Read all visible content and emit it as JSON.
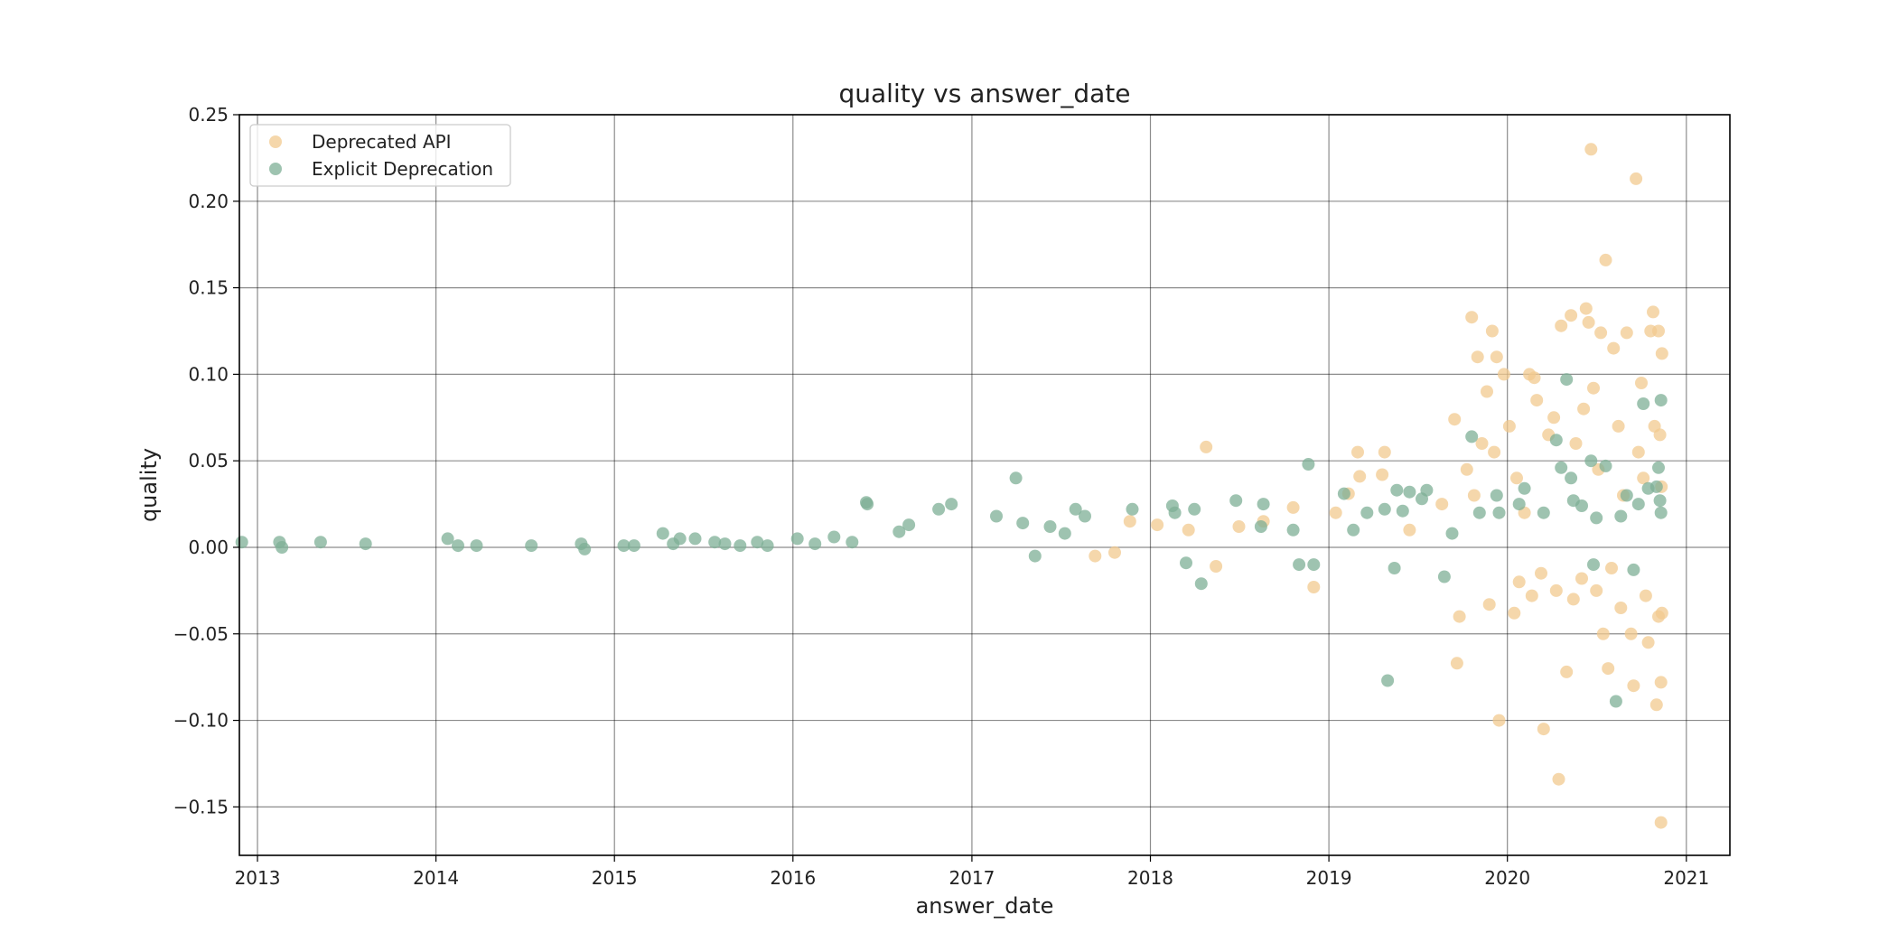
{
  "chart_data": {
    "type": "scatter",
    "title": "quality vs answer_date",
    "xlabel": "answer_date",
    "ylabel": "quality",
    "x_axis_type": "date",
    "xlim": [
      "2012-11-25",
      "2021-03-31"
    ],
    "ylim": [
      -0.178,
      0.25
    ],
    "x_ticks": [
      "2013",
      "2014",
      "2015",
      "2016",
      "2017",
      "2018",
      "2019",
      "2020",
      "2021"
    ],
    "y_ticks": [
      "0.25",
      "0.20",
      "0.15",
      "0.10",
      "0.05",
      "0.00",
      "−0.05",
      "−0.10",
      "−0.15"
    ],
    "grid": true,
    "legend_position": "top-left",
    "series": [
      {
        "name": "Deprecated API",
        "color": "#f2c98f",
        "points": [
          [
            "2017-09-10",
            -0.005
          ],
          [
            "2017-10-20",
            -0.003
          ],
          [
            "2017-11-20",
            0.015
          ],
          [
            "2018-01-15",
            0.013
          ],
          [
            "2018-03-20",
            0.01
          ],
          [
            "2018-04-25",
            0.058
          ],
          [
            "2018-05-15",
            -0.011
          ],
          [
            "2018-07-01",
            0.012
          ],
          [
            "2018-08-20",
            0.015
          ],
          [
            "2018-10-20",
            0.023
          ],
          [
            "2018-12-01",
            -0.023
          ],
          [
            "2019-01-15",
            0.02
          ],
          [
            "2019-02-10",
            0.031
          ],
          [
            "2019-03-01",
            0.055
          ],
          [
            "2019-03-05",
            0.041
          ],
          [
            "2019-04-20",
            0.042
          ],
          [
            "2019-04-25",
            0.055
          ],
          [
            "2019-06-15",
            0.01
          ],
          [
            "2019-08-20",
            0.025
          ],
          [
            "2019-09-15",
            0.074
          ],
          [
            "2019-09-20",
            -0.067
          ],
          [
            "2019-09-25",
            -0.04
          ],
          [
            "2019-10-20",
            0.133
          ],
          [
            "2019-11-01",
            0.11
          ],
          [
            "2019-11-20",
            0.09
          ],
          [
            "2019-11-25",
            -0.033
          ],
          [
            "2019-12-01",
            0.125
          ],
          [
            "2019-12-10",
            0.11
          ],
          [
            "2019-12-15",
            -0.1
          ],
          [
            "2019-12-25",
            0.1
          ],
          [
            "2020-01-15",
            -0.038
          ],
          [
            "2020-02-15",
            0.1
          ],
          [
            "2020-02-25",
            0.098
          ],
          [
            "2020-03-15",
            -0.105
          ],
          [
            "2020-04-15",
            -0.134
          ],
          [
            "2020-04-20",
            0.128
          ],
          [
            "2020-05-01",
            -0.072
          ],
          [
            "2020-05-10",
            0.134
          ],
          [
            "2020-06-10",
            0.138
          ],
          [
            "2020-06-15",
            0.13
          ],
          [
            "2020-06-20",
            0.23
          ],
          [
            "2020-06-25",
            0.092
          ],
          [
            "2020-07-10",
            0.124
          ],
          [
            "2020-07-15",
            -0.05
          ],
          [
            "2020-07-20",
            0.166
          ],
          [
            "2020-07-25",
            -0.07
          ],
          [
            "2020-08-05",
            0.115
          ],
          [
            "2020-09-01",
            0.124
          ],
          [
            "2020-09-10",
            -0.05
          ],
          [
            "2020-09-15",
            -0.08
          ],
          [
            "2020-09-20",
            0.213
          ],
          [
            "2020-10-01",
            0.095
          ],
          [
            "2020-10-15",
            -0.055
          ],
          [
            "2020-10-20",
            0.125
          ],
          [
            "2020-10-25",
            0.136
          ],
          [
            "2020-11-01",
            -0.091
          ],
          [
            "2020-11-05",
            -0.04
          ],
          [
            "2020-11-05",
            0.125
          ],
          [
            "2020-11-10",
            -0.078
          ],
          [
            "2020-11-10",
            -0.159
          ],
          [
            "2020-11-12",
            -0.038
          ],
          [
            "2020-11-12",
            0.112
          ],
          [
            "2019-10-10",
            0.045
          ],
          [
            "2019-10-25",
            0.03
          ],
          [
            "2019-11-10",
            0.06
          ],
          [
            "2019-12-05",
            0.055
          ],
          [
            "2020-01-05",
            0.07
          ],
          [
            "2020-01-20",
            0.04
          ],
          [
            "2020-02-05",
            0.02
          ],
          [
            "2020-03-01",
            0.085
          ],
          [
            "2020-03-25",
            0.065
          ],
          [
            "2020-04-05",
            0.075
          ],
          [
            "2020-05-20",
            0.06
          ],
          [
            "2020-06-05",
            0.08
          ],
          [
            "2020-07-05",
            0.045
          ],
          [
            "2020-08-15",
            0.07
          ],
          [
            "2020-08-25",
            0.03
          ],
          [
            "2020-09-25",
            0.055
          ],
          [
            "2020-10-05",
            0.04
          ],
          [
            "2020-10-28",
            0.07
          ],
          [
            "2020-11-08",
            0.065
          ],
          [
            "2020-11-11",
            0.035
          ],
          [
            "2020-01-25",
            -0.02
          ],
          [
            "2020-02-20",
            -0.028
          ],
          [
            "2020-03-10",
            -0.015
          ],
          [
            "2020-04-10",
            -0.025
          ],
          [
            "2020-05-15",
            -0.03
          ],
          [
            "2020-06-01",
            -0.018
          ],
          [
            "2020-07-01",
            -0.025
          ],
          [
            "2020-08-01",
            -0.012
          ],
          [
            "2020-08-20",
            -0.035
          ],
          [
            "2020-10-10",
            -0.028
          ]
        ]
      },
      {
        "name": "Explicit Deprecation",
        "color": "#7daf95",
        "points": [
          [
            "2012-11-30",
            0.003
          ],
          [
            "2013-02-15",
            0.003
          ],
          [
            "2013-02-20",
            0.0
          ],
          [
            "2013-05-10",
            0.003
          ],
          [
            "2013-08-10",
            0.002
          ],
          [
            "2014-01-25",
            0.005
          ],
          [
            "2014-02-15",
            0.001
          ],
          [
            "2014-03-25",
            0.001
          ],
          [
            "2014-07-15",
            0.001
          ],
          [
            "2014-10-25",
            0.002
          ],
          [
            "2014-11-01",
            -0.001
          ],
          [
            "2015-01-20",
            0.001
          ],
          [
            "2015-02-10",
            0.001
          ],
          [
            "2015-04-10",
            0.008
          ],
          [
            "2015-05-01",
            0.002
          ],
          [
            "2015-05-15",
            0.005
          ],
          [
            "2015-06-15",
            0.005
          ],
          [
            "2015-07-25",
            0.003
          ],
          [
            "2015-08-15",
            0.002
          ],
          [
            "2015-09-15",
            0.001
          ],
          [
            "2015-10-20",
            0.003
          ],
          [
            "2015-11-10",
            0.001
          ],
          [
            "2016-01-10",
            0.005
          ],
          [
            "2016-02-15",
            0.002
          ],
          [
            "2016-03-25",
            0.006
          ],
          [
            "2016-05-01",
            0.003
          ],
          [
            "2016-05-30",
            0.026
          ],
          [
            "2016-06-01",
            0.025
          ],
          [
            "2016-08-05",
            0.009
          ],
          [
            "2016-08-25",
            0.013
          ],
          [
            "2016-10-25",
            0.022
          ],
          [
            "2016-11-20",
            0.025
          ],
          [
            "2017-02-20",
            0.018
          ],
          [
            "2017-04-01",
            0.04
          ],
          [
            "2017-04-15",
            0.014
          ],
          [
            "2017-05-10",
            -0.005
          ],
          [
            "2017-06-10",
            0.012
          ],
          [
            "2017-07-10",
            0.008
          ],
          [
            "2017-08-01",
            0.022
          ],
          [
            "2017-08-20",
            0.018
          ],
          [
            "2017-11-25",
            0.022
          ],
          [
            "2018-02-15",
            0.024
          ],
          [
            "2018-02-20",
            0.02
          ],
          [
            "2018-03-15",
            -0.009
          ],
          [
            "2018-04-01",
            0.022
          ],
          [
            "2018-04-15",
            -0.021
          ],
          [
            "2018-06-25",
            0.027
          ],
          [
            "2018-08-15",
            0.012
          ],
          [
            "2018-08-20",
            0.025
          ],
          [
            "2018-10-20",
            0.01
          ],
          [
            "2018-11-01",
            -0.01
          ],
          [
            "2018-11-20",
            0.048
          ],
          [
            "2018-12-01",
            -0.01
          ],
          [
            "2019-02-01",
            0.031
          ],
          [
            "2019-02-20",
            0.01
          ],
          [
            "2019-03-20",
            0.02
          ],
          [
            "2019-04-25",
            0.022
          ],
          [
            "2019-05-01",
            -0.077
          ],
          [
            "2019-05-15",
            -0.012
          ],
          [
            "2019-05-20",
            0.033
          ],
          [
            "2019-06-01",
            0.021
          ],
          [
            "2019-06-15",
            0.032
          ],
          [
            "2019-07-10",
            0.028
          ],
          [
            "2019-07-20",
            0.033
          ],
          [
            "2019-08-25",
            -0.017
          ],
          [
            "2019-09-10",
            0.008
          ],
          [
            "2019-10-20",
            0.064
          ],
          [
            "2019-11-05",
            0.02
          ],
          [
            "2019-12-10",
            0.03
          ],
          [
            "2019-12-15",
            0.02
          ],
          [
            "2020-01-25",
            0.025
          ],
          [
            "2020-02-05",
            0.034
          ],
          [
            "2020-03-15",
            0.02
          ],
          [
            "2020-04-10",
            0.062
          ],
          [
            "2020-04-20",
            0.046
          ],
          [
            "2020-05-01",
            0.097
          ],
          [
            "2020-05-10",
            0.04
          ],
          [
            "2020-05-15",
            0.027
          ],
          [
            "2020-06-01",
            0.024
          ],
          [
            "2020-06-20",
            0.05
          ],
          [
            "2020-06-25",
            -0.01
          ],
          [
            "2020-07-01",
            0.017
          ],
          [
            "2020-07-20",
            0.047
          ],
          [
            "2020-08-10",
            -0.089
          ],
          [
            "2020-08-20",
            0.018
          ],
          [
            "2020-09-01",
            0.03
          ],
          [
            "2020-09-15",
            -0.013
          ],
          [
            "2020-09-25",
            0.025
          ],
          [
            "2020-10-05",
            0.083
          ],
          [
            "2020-10-15",
            0.034
          ],
          [
            "2020-11-01",
            0.035
          ],
          [
            "2020-11-05",
            0.046
          ],
          [
            "2020-11-08",
            0.027
          ],
          [
            "2020-11-10",
            0.085
          ],
          [
            "2020-11-10",
            0.02
          ]
        ]
      }
    ]
  }
}
